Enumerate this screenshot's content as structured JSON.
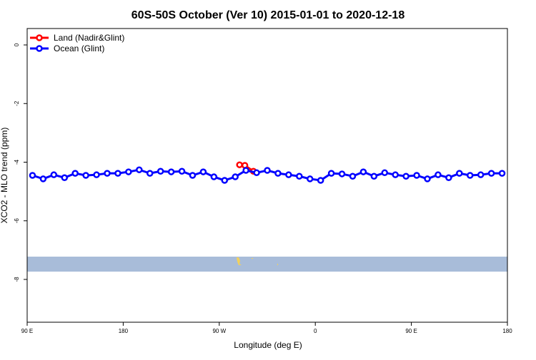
{
  "chart_data": {
    "type": "line",
    "title": "60S-50S October (Ver 10)   2015-01-01 to 2020-12-18",
    "x_label": "Longitude (deg E)",
    "y_label": "XCO2 - MLO trend (ppm)",
    "xlim": [
      90,
      540
    ],
    "xticks": [
      {
        "value": 90,
        "label": "90 E"
      },
      180,
      {
        "value": 270,
        "label": "90 W"
      },
      {
        "value": 360,
        "label": "0"
      },
      {
        "value": 450,
        "label": "90 E"
      },
      180
    ],
    "ylim": [
      -9.46,
      0.56
    ],
    "yticks": [
      0,
      -2,
      -4,
      -6,
      -8
    ],
    "legend": "top-left",
    "series": [
      {
        "name": "Land (Nadir&Glint)",
        "color": "#ff0000",
        "x": [
          289,
          294,
          302
        ],
        "values": [
          -4.09,
          -4.11,
          -4.31
        ]
      },
      {
        "name": "Ocean (Glint)",
        "color": "#0000ff",
        "x": [
          95,
          105,
          115,
          125,
          135,
          145,
          155,
          165,
          175,
          185,
          195,
          205,
          215,
          225,
          235,
          245,
          255,
          265,
          275,
          285,
          295,
          305,
          315,
          325,
          335,
          345,
          355,
          365,
          375,
          385,
          395,
          405,
          415,
          425,
          435,
          445,
          455,
          465,
          475,
          485,
          495,
          505,
          515,
          525,
          535
        ],
        "values": [
          -4.45,
          -4.57,
          -4.43,
          -4.53,
          -4.38,
          -4.45,
          -4.43,
          -4.38,
          -4.38,
          -4.33,
          -4.26,
          -4.38,
          -4.31,
          -4.33,
          -4.31,
          -4.45,
          -4.33,
          -4.5,
          -4.62,
          -4.5,
          -4.28,
          -4.36,
          -4.28,
          -4.38,
          -4.43,
          -4.48,
          -4.57,
          -4.62,
          -4.38,
          -4.4,
          -4.48,
          -4.33,
          -4.48,
          -4.36,
          -4.43,
          -4.48,
          -4.45,
          -4.57,
          -4.43,
          -4.53,
          -4.38,
          -4.45,
          -4.43,
          -4.38,
          -4.38
        ]
      }
    ]
  }
}
